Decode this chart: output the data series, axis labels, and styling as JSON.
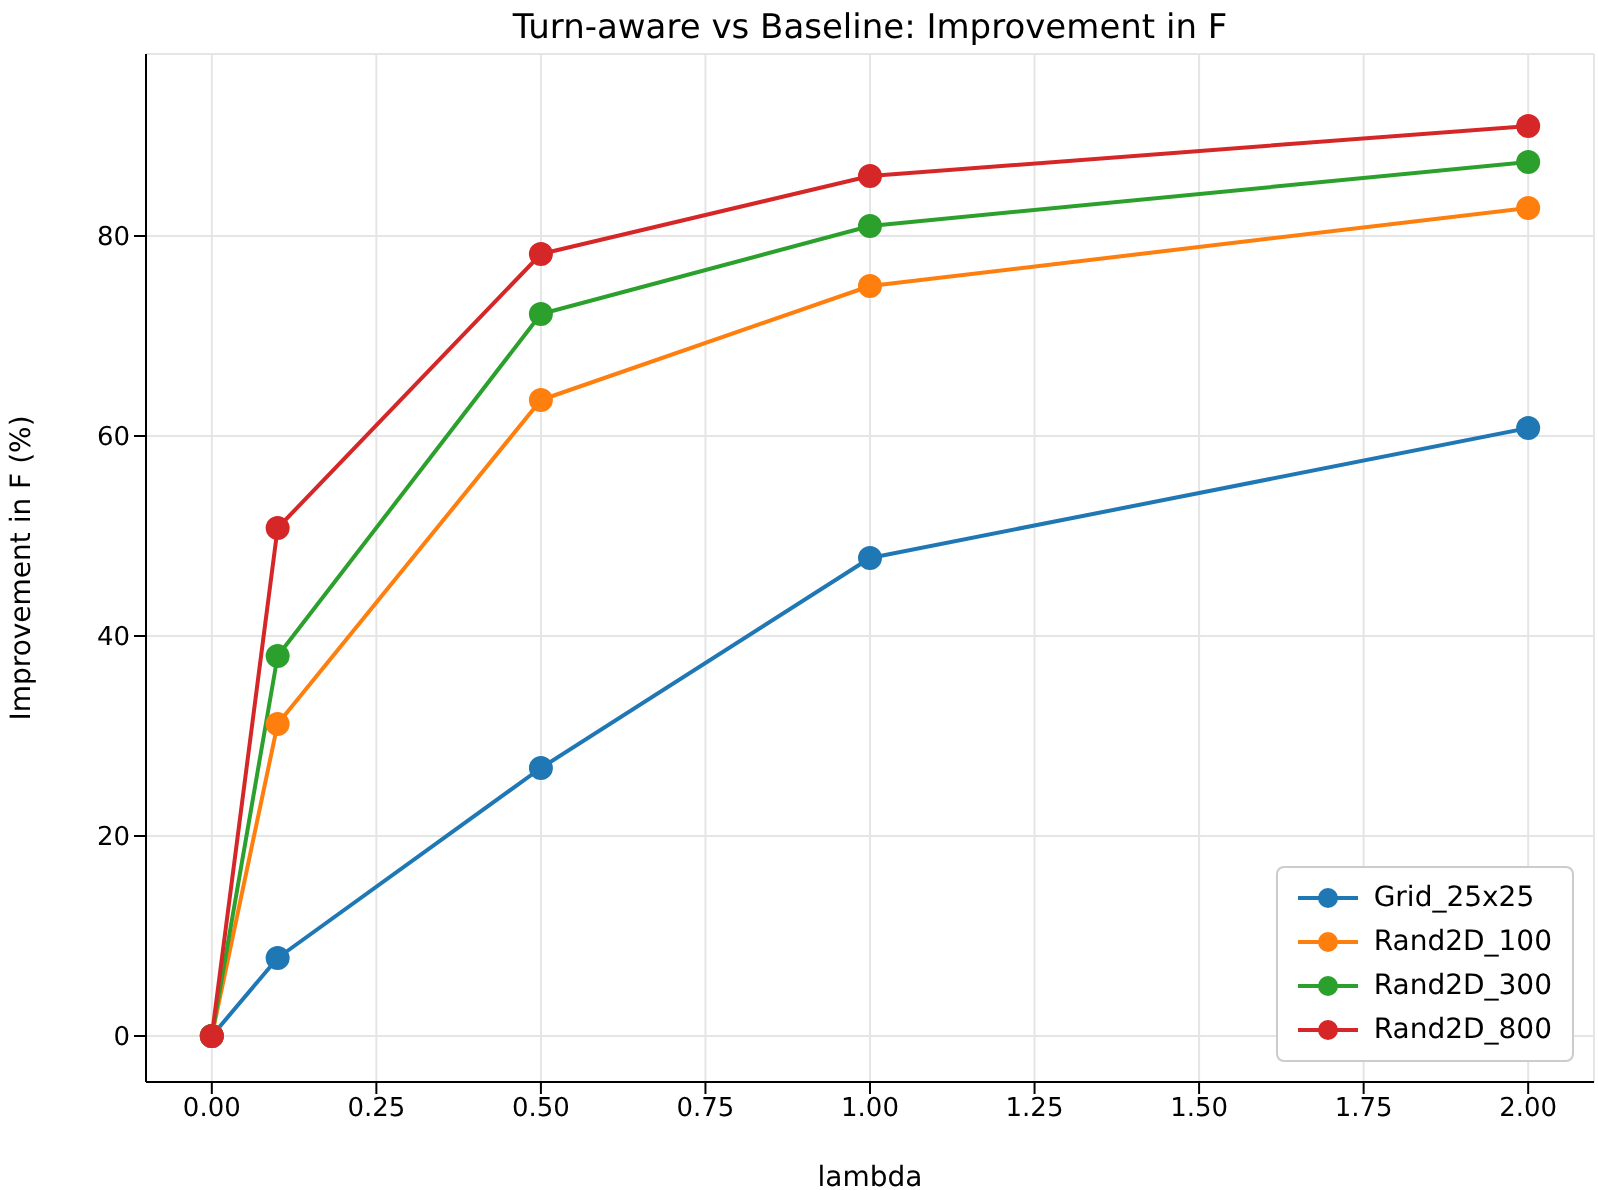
{
  "chart_data": {
    "type": "line",
    "title": "Turn-aware vs Baseline: Improvement in F",
    "xlabel": "lambda",
    "ylabel": "Improvement in F (%)",
    "x": [
      0,
      0.1,
      0.5,
      1,
      2
    ],
    "series": [
      {
        "name": "Grid_25x25",
        "color": "#1f77b4",
        "values": [
          0,
          7.8,
          26.8,
          47.8,
          60.8
        ]
      },
      {
        "name": "Rand2D_100",
        "color": "#ff7f0e",
        "values": [
          0,
          31.2,
          63.6,
          75,
          82.8
        ]
      },
      {
        "name": "Rand2D_300",
        "color": "#2ca02c",
        "values": [
          0,
          38,
          72.2,
          81,
          87.4
        ]
      },
      {
        "name": "Rand2D_800",
        "color": "#d62728",
        "values": [
          0,
          50.8,
          78.2,
          86,
          91
        ]
      }
    ],
    "xlim": [
      -0.1,
      2.1
    ],
    "ylim": [
      -4.6,
      98.2
    ],
    "xticks": [
      {
        "value": 0,
        "label": "0.00"
      },
      {
        "value": 0.25,
        "label": "0.25"
      },
      {
        "value": 0.5,
        "label": "0.50"
      },
      {
        "value": 0.75,
        "label": "0.75"
      },
      {
        "value": 1,
        "label": "1.00"
      },
      {
        "value": 1.25,
        "label": "1.25"
      },
      {
        "value": 1.5,
        "label": "1.50"
      },
      {
        "value": 1.75,
        "label": "1.75"
      },
      {
        "value": 2,
        "label": "2.00"
      }
    ],
    "yticks": [
      0,
      20,
      40,
      60,
      80
    ],
    "grid": true,
    "legend": "bottom right",
    "marker": "circle",
    "line_style": "solid"
  }
}
